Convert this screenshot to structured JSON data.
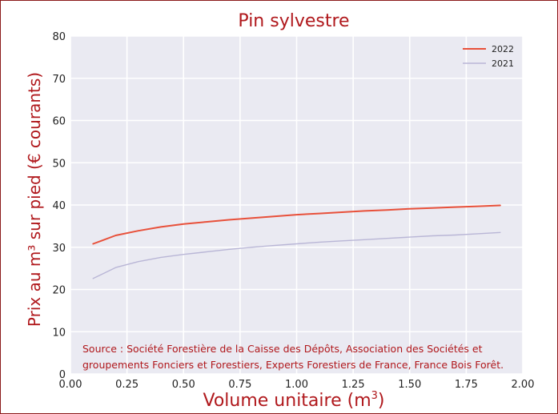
{
  "chart_data": {
    "type": "line",
    "title": "Pin sylvestre",
    "xlabel": "Volume unitaire (m",
    "xlabel_sup": "3",
    "xlabel_end": ")",
    "ylabel": "Prix au m³ sur pied (€ courants)",
    "xlim": [
      0.0,
      2.0
    ],
    "ylim": [
      0,
      80
    ],
    "xticks": [
      "0.00",
      "0.25",
      "0.50",
      "0.75",
      "1.00",
      "1.25",
      "1.50",
      "1.75",
      "2.00"
    ],
    "yticks": [
      "0",
      "10",
      "20",
      "30",
      "40",
      "50",
      "60",
      "70",
      "80"
    ],
    "grid": true,
    "legend_position": "top-right",
    "series": [
      {
        "name": "2022",
        "color": "#e8503a",
        "x": [
          0.1,
          0.2,
          0.3,
          0.4,
          0.5,
          0.6,
          0.7,
          0.8,
          0.9,
          1.0,
          1.1,
          1.2,
          1.3,
          1.4,
          1.5,
          1.6,
          1.7,
          1.8,
          1.9
        ],
        "y": [
          30.8,
          32.8,
          33.9,
          34.8,
          35.5,
          36.0,
          36.5,
          36.9,
          37.3,
          37.7,
          38.0,
          38.3,
          38.6,
          38.8,
          39.1,
          39.3,
          39.5,
          39.7,
          39.9
        ]
      },
      {
        "name": "2021",
        "color": "#b9b6d6",
        "x": [
          0.1,
          0.2,
          0.3,
          0.4,
          0.5,
          0.6,
          0.7,
          0.8,
          0.9,
          1.0,
          1.1,
          1.2,
          1.3,
          1.4,
          1.5,
          1.6,
          1.7,
          1.8,
          1.9
        ],
        "y": [
          22.6,
          25.2,
          26.6,
          27.6,
          28.3,
          28.9,
          29.5,
          30.0,
          30.4,
          30.8,
          31.2,
          31.5,
          31.8,
          32.1,
          32.4,
          32.7,
          32.9,
          33.2,
          33.5
        ]
      }
    ],
    "annotation_lines": [
      "Source : Société Forestière de la Caisse des Dépôts, Association des Sociétés et",
      "groupements Fonciers et Forestiers, Experts Forestiers de France, France Bois Forêt."
    ]
  }
}
